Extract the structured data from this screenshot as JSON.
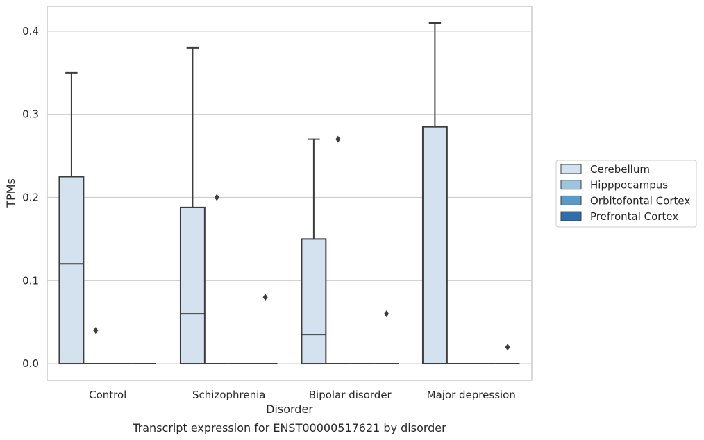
{
  "caption": "Transcript expression for ENST00000517621 by disorder",
  "chart_data": {
    "type": "box",
    "xlabel": "Disorder",
    "ylabel": "TPMs",
    "ylim": [
      -0.02,
      0.43
    ],
    "yticks": [
      "0.0",
      "0.1",
      "0.2",
      "0.3",
      "0.4"
    ],
    "ytick_values": [
      0.0,
      0.1,
      0.2,
      0.3,
      0.4
    ],
    "grid": "horizontal",
    "legend_position": "right",
    "categories": [
      "Control",
      "Schizophrenia",
      "Bipolar disorder",
      "Major depression"
    ],
    "series": [
      {
        "name": "Cerebellum",
        "color": "#d4e2f0",
        "boxes": [
          {
            "whislo": 0.0,
            "q1": 0.0,
            "med": 0.12,
            "q3": 0.225,
            "whishi": 0.35,
            "fliers": []
          },
          {
            "whislo": 0.0,
            "q1": 0.0,
            "med": 0.06,
            "q3": 0.188,
            "whishi": 0.38,
            "fliers": []
          },
          {
            "whislo": 0.0,
            "q1": 0.0,
            "med": 0.035,
            "q3": 0.15,
            "whishi": 0.27,
            "fliers": []
          },
          {
            "whislo": 0.0,
            "q1": 0.0,
            "med": 0.0,
            "q3": 0.285,
            "whishi": 0.41,
            "fliers": []
          }
        ]
      },
      {
        "name": "Hipppocampus",
        "color": "#9dc3dd",
        "boxes": [
          {
            "whislo": 0.0,
            "q1": 0.0,
            "med": 0.0,
            "q3": 0.0,
            "whishi": 0.0,
            "fliers": [
              0.04
            ]
          },
          {
            "whislo": 0.0,
            "q1": 0.0,
            "med": 0.0,
            "q3": 0.0,
            "whishi": 0.0,
            "fliers": [
              0.2
            ]
          },
          {
            "whislo": 0.0,
            "q1": 0.0,
            "med": 0.0,
            "q3": 0.0,
            "whishi": 0.0,
            "fliers": [
              0.27
            ]
          },
          {
            "whislo": 0.0,
            "q1": 0.0,
            "med": 0.0,
            "q3": 0.0,
            "whishi": 0.0,
            "fliers": []
          }
        ]
      },
      {
        "name": "Orbitofontal Cortex",
        "color": "#5a9ac8",
        "boxes": [
          {
            "whislo": 0.0,
            "q1": 0.0,
            "med": 0.0,
            "q3": 0.0,
            "whishi": 0.0,
            "fliers": []
          },
          {
            "whislo": 0.0,
            "q1": 0.0,
            "med": 0.0,
            "q3": 0.0,
            "whishi": 0.0,
            "fliers": []
          },
          {
            "whislo": 0.0,
            "q1": 0.0,
            "med": 0.0,
            "q3": 0.0,
            "whishi": 0.0,
            "fliers": []
          },
          {
            "whislo": 0.0,
            "q1": 0.0,
            "med": 0.0,
            "q3": 0.0,
            "whishi": 0.0,
            "fliers": []
          }
        ]
      },
      {
        "name": "Prefrontal Cortex",
        "color": "#2d6fad",
        "boxes": [
          {
            "whislo": 0.0,
            "q1": 0.0,
            "med": 0.0,
            "q3": 0.0,
            "whishi": 0.0,
            "fliers": []
          },
          {
            "whislo": 0.0,
            "q1": 0.0,
            "med": 0.0,
            "q3": 0.0,
            "whishi": 0.0,
            "fliers": [
              0.08
            ]
          },
          {
            "whislo": 0.0,
            "q1": 0.0,
            "med": 0.0,
            "q3": 0.0,
            "whishi": 0.0,
            "fliers": [
              0.06
            ]
          },
          {
            "whislo": 0.0,
            "q1": 0.0,
            "med": 0.0,
            "q3": 0.0,
            "whishi": 0.0,
            "fliers": [
              0.02
            ]
          }
        ]
      }
    ]
  }
}
